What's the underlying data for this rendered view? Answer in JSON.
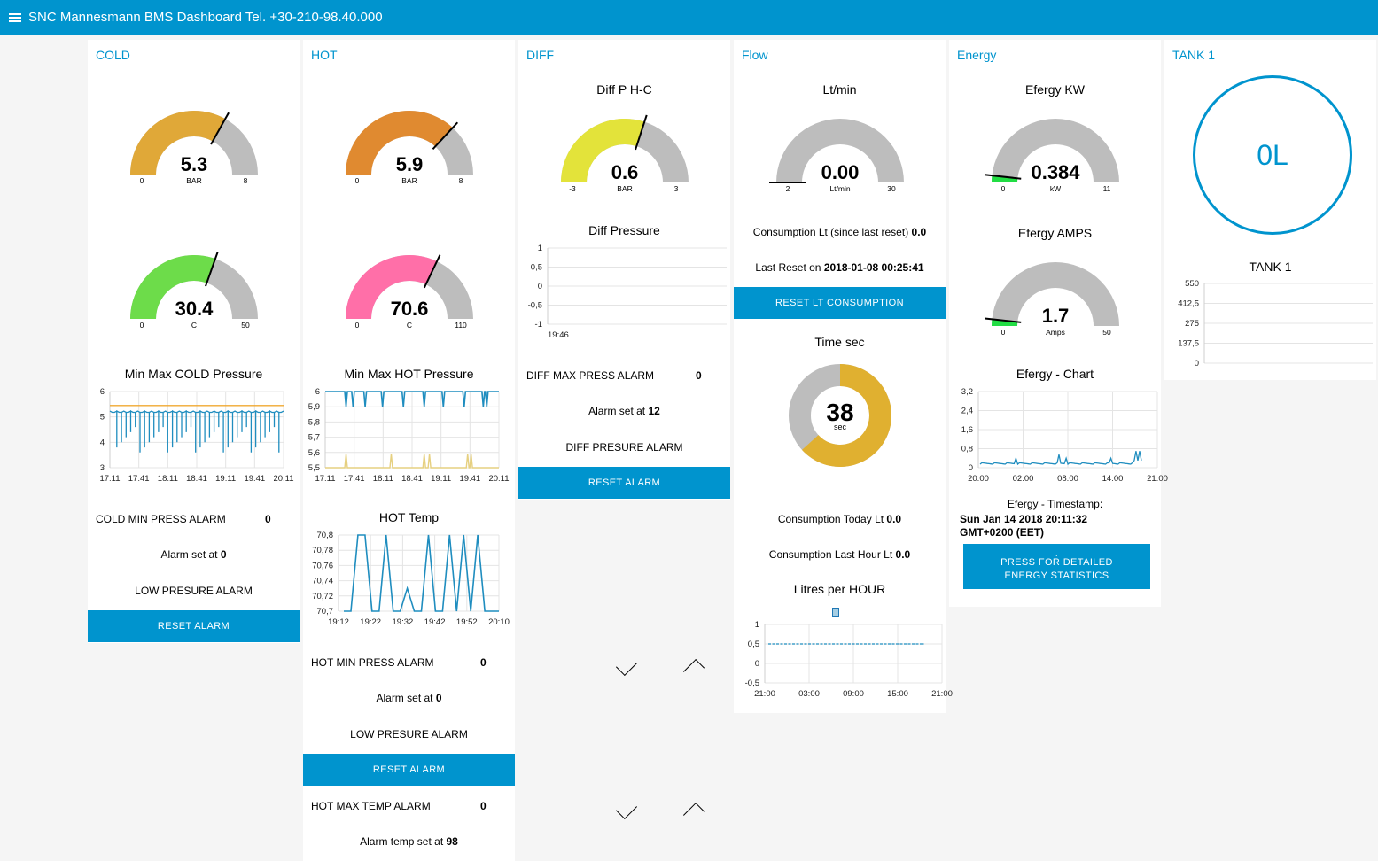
{
  "header": {
    "title": "SNC Mannesmann BMS Dashboard Tel. +30-210-98.40.000"
  },
  "cold": {
    "title": "COLD",
    "pressure_gauge": {
      "value": "5.3",
      "units": "BAR",
      "min": "0",
      "max": "8",
      "level": 0.6625,
      "color": "#e0a838"
    },
    "temp_gauge": {
      "value": "30.4",
      "units": "C",
      "min": "0",
      "max": "50",
      "level": 0.608,
      "color": "#6ddc4a"
    },
    "chart": {
      "title": "Min Max COLD Pressure",
      "y_ticks": [
        "6",
        "5",
        "4",
        "3"
      ],
      "x_ticks": [
        "17:11",
        "17:41",
        "18:11",
        "18:41",
        "19:11",
        "19:41",
        "20:11"
      ],
      "y_min": 3,
      "y_max": 6,
      "max_line": 5.45,
      "series_color": "#1f8dbf",
      "max_color": "#f0a830"
    },
    "min_press": {
      "label": "COLD MIN PRESS ALARM",
      "value": "0"
    },
    "alarm_set": {
      "prefix": "Alarm set at",
      "value": "0"
    },
    "status": "LOW PRESURE ALARM",
    "reset": "RESET ALARM"
  },
  "hot": {
    "title": "HOT",
    "pressure_gauge": {
      "value": "5.9",
      "units": "BAR",
      "min": "0",
      "max": "8",
      "level": 0.7375,
      "color": "#e08a30"
    },
    "temp_gauge": {
      "value": "70.6",
      "units": "C",
      "min": "0",
      "max": "110",
      "level": 0.6418,
      "color": "#ff6fa8"
    },
    "chart": {
      "title": "Min Max HOT Pressure",
      "y_ticks": [
        "6",
        "5,9",
        "5,8",
        "5,7",
        "5,6",
        "5,5"
      ],
      "x_ticks": [
        "17:11",
        "17:41",
        "18:11",
        "18:41",
        "19:11",
        "19:41",
        "20:11"
      ],
      "y_min": 5.5,
      "y_max": 6,
      "series_color": "#1f8dbf",
      "min_color": "#e6d080"
    },
    "temp_chart": {
      "title": "HOT Temp",
      "y_ticks": [
        "70,8",
        "70,78",
        "70,76",
        "70,74",
        "70,72",
        "70,7"
      ],
      "x_ticks": [
        "19:12",
        "19:22",
        "19:32",
        "19:42",
        "19:52",
        "20:10"
      ],
      "y_min": 70.7,
      "y_max": 70.8,
      "values": [
        70.7,
        70.7,
        70.8,
        70.8,
        70.7,
        70.7,
        70.8,
        70.7,
        70.7,
        70.73,
        70.7,
        70.7,
        70.8,
        70.7,
        70.7,
        70.8,
        70.7,
        70.8,
        70.7,
        70.8,
        70.7,
        70.7,
        70.7
      ],
      "series_color": "#1f8dbf"
    },
    "min_press": {
      "label": "HOT MIN PRESS ALARM",
      "value": "0"
    },
    "alarm_set": {
      "prefix": "Alarm set at",
      "value": "0"
    },
    "status": "LOW PRESURE ALARM",
    "reset": "RESET ALARM",
    "max_temp": {
      "label": "HOT MAX TEMP ALARM",
      "value": "0"
    },
    "temp_set": {
      "prefix": "Alarm temp set at",
      "value": "98"
    }
  },
  "diff": {
    "title": "DIFF",
    "gauge": {
      "label": "Diff P H-C",
      "value": "0.6",
      "units": "BAR",
      "min": "-3",
      "max": "3",
      "level": 0.6,
      "color": "#e3e33a"
    },
    "chart": {
      "title": "Diff Pressure",
      "y_ticks": [
        "1",
        "0,5",
        "0",
        "-0,5",
        "-1"
      ],
      "x_ticks": [
        "19:46"
      ]
    },
    "max_press": {
      "label": "DIFF MAX PRESS ALARM",
      "value": "0"
    },
    "alarm_set": {
      "prefix": "Alarm set at",
      "value": "12"
    },
    "status": "DIFF PRESURE ALARM",
    "reset": "RESET ALARM"
  },
  "flow": {
    "title": "Flow",
    "gauge": {
      "label": "Lt/min",
      "value": "0.00",
      "units": "Lt/min",
      "min": "2",
      "max": "30",
      "level": 0.0
    },
    "consumption": {
      "prefix": "Consumption Lt (since last reset)",
      "value": "0.0"
    },
    "last_reset": {
      "prefix": "Last Reset on",
      "value": "2018-01-08 00:25:41"
    },
    "reset": "RESET LT CONSUMPTION",
    "timer": {
      "label": "Time sec",
      "value": "38",
      "units": "sec",
      "level": 0.633,
      "color": "#e0b030"
    },
    "today": {
      "prefix": "Consumption Today Lt",
      "value": "0.0"
    },
    "last_hour": {
      "prefix": "Consumption Last Hour Lt",
      "value": "0.0"
    },
    "chart": {
      "title": "Litres per HOUR",
      "y_ticks": [
        "1",
        "0,5",
        "0",
        "-0,5"
      ],
      "x_ticks": [
        "21:00",
        "03:00",
        "09:00",
        "15:00",
        "21:00"
      ]
    }
  },
  "energy": {
    "title": "Energy",
    "kw_gauge": {
      "label": "Efergy KW",
      "value": "0.384",
      "units": "kW",
      "min": "0",
      "max": "11",
      "level": 0.035,
      "color": "#22dd44"
    },
    "amps_gauge": {
      "label": "Efergy AMPS",
      "value": "1.7",
      "units": "Amps",
      "min": "0",
      "max": "50",
      "level": 0.034,
      "color": "#22dd44"
    },
    "chart": {
      "title": "Efergy - Chart",
      "y_ticks": [
        "3,2",
        "2,4",
        "1,6",
        "0,8",
        "0"
      ],
      "x_ticks": [
        "20:00",
        "02:00",
        "08:00",
        "14:00",
        "21:00"
      ]
    },
    "timestamp_label": "Efergy - Timestamp:",
    "timestamp_line1": "Sun Jan 14 2018 20:11:32",
    "timestamp_line2": "GMT+0200 (EET)",
    "stats_dot": ".",
    "stats_button_line1": "PRESS FOR DETAILED",
    "stats_button_line2": "ENERGY STATISTICS"
  },
  "tank": {
    "title": "TANK 1",
    "level_display": "0L",
    "chart": {
      "title": "TANK 1",
      "y_ticks": [
        "550",
        "412,5",
        "275",
        "137,5",
        "0"
      ]
    }
  }
}
